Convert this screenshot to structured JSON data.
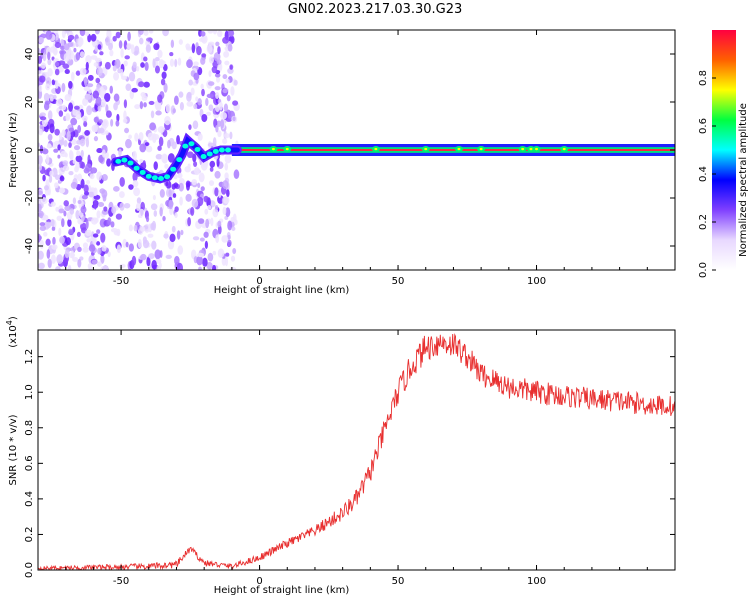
{
  "title": "GN02.2023.217.03.30.G23",
  "chart_data": [
    {
      "type": "heatmap",
      "xlabel": "Height of straight line (km)",
      "ylabel": "Frequency (Hz)",
      "xlim": [
        -80,
        150
      ],
      "ylim": [
        -50,
        50
      ],
      "xticks": [
        -50,
        0,
        50,
        100
      ],
      "yticks": [
        -40,
        -20,
        0,
        20,
        40
      ],
      "colorbar": {
        "label": "Normalized spectral amplitude",
        "range": [
          0.0,
          1.0
        ],
        "ticks": [
          "0.0",
          "0.2",
          "0.4",
          "0.6",
          "0.8"
        ],
        "colors": [
          "#ffffff",
          "#e8d8ff",
          "#8040ff",
          "#0000ff",
          "#00ffff",
          "#00ff40",
          "#ffff00",
          "#ff6000",
          "#ff0040"
        ]
      },
      "ridge": {
        "x": [
          -52,
          -48,
          -44,
          -40,
          -36,
          -33,
          -30,
          -28,
          -26,
          -23,
          -20,
          -17,
          -14,
          -10,
          -5,
          0,
          5,
          10,
          15,
          150
        ],
        "y": [
          -5,
          -4,
          -8,
          -11,
          -12,
          -11,
          -6,
          -2,
          4,
          1,
          -3,
          -1,
          0,
          0,
          0,
          0,
          1,
          0,
          0,
          0
        ]
      }
    },
    {
      "type": "line",
      "xlabel": "Height of straight line (km)",
      "ylabel": "SNR (10 * v/v)",
      "y_multiplier": "(x10",
      "y_multiplier_exp": "4",
      "xlim": [
        -80,
        150
      ],
      "ylim": [
        0,
        1.35
      ],
      "xticks": [
        -50,
        0,
        50,
        100
      ],
      "yticks": [
        0.0,
        0.2,
        0.4,
        0.6,
        0.8,
        1.0,
        1.2
      ],
      "color": "#e83030",
      "trend": {
        "x": [
          -80,
          -40,
          -30,
          -25,
          -20,
          -10,
          0,
          10,
          20,
          30,
          35,
          40,
          45,
          50,
          55,
          60,
          65,
          70,
          75,
          80,
          90,
          100,
          110,
          120,
          130,
          140,
          150
        ],
        "y": [
          0.01,
          0.02,
          0.03,
          0.12,
          0.04,
          0.02,
          0.07,
          0.15,
          0.22,
          0.32,
          0.4,
          0.55,
          0.78,
          1.0,
          1.15,
          1.25,
          1.28,
          1.27,
          1.2,
          1.1,
          1.03,
          1.0,
          0.98,
          0.96,
          0.95,
          0.93,
          0.92
        ]
      },
      "noise_amplitude": {
        "x": [
          -80,
          -30,
          -10,
          20,
          40,
          60,
          75,
          150
        ],
        "y": [
          0.01,
          0.02,
          0.015,
          0.03,
          0.06,
          0.08,
          0.07,
          0.06
        ]
      }
    }
  ]
}
